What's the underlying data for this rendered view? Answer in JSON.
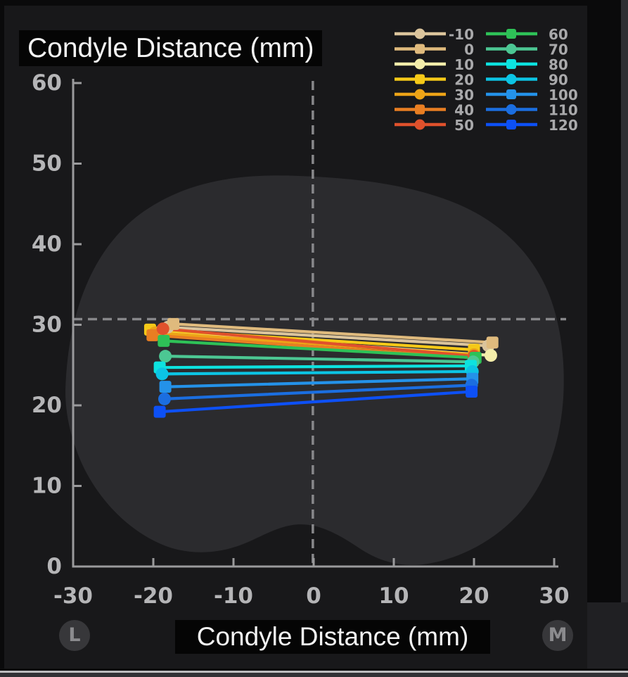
{
  "title": "Condyle Distance (mm)",
  "axis_title_x": "Condyle Distance (mm)",
  "corner_labels": {
    "left": "L",
    "right": "M"
  },
  "colors": {
    "panel_background": "#18181a",
    "plateau_blob": "#2b2b2e",
    "axis": "#9a9a9c",
    "tick_text": "#b5b5b7",
    "dashed_crosshair": "#87878a",
    "legend_text": "#a9a9ab",
    "title_text": "#f4f4f4",
    "title_background": "#050505",
    "badge_background": "#37373a",
    "badge_text": "#8b8b8e"
  },
  "chart_data": {
    "type": "line",
    "title": "Condyle Distance (mm)",
    "xlabel": "Condyle Distance (mm)",
    "ylabel": "Condyle Distance (mm)",
    "xlim": [
      -30,
      30
    ],
    "ylim": [
      0,
      60
    ],
    "xticks": [
      -30,
      -20,
      -10,
      0,
      10,
      20,
      30
    ],
    "yticks": [
      0,
      10,
      20,
      30,
      40,
      50,
      60
    ],
    "grid": false,
    "crosshair": {
      "x": -0.1,
      "y": 30.7
    },
    "legend_position": "top-right",
    "legend_columns": 2,
    "series": [
      {
        "name": "-10",
        "color": "#dbc49c",
        "marker": "circle",
        "points": [
          [
            -18.2,
            29.7
          ],
          [
            21.8,
            27.4
          ]
        ]
      },
      {
        "name": "0",
        "color": "#dfba7d",
        "marker": "square",
        "points": [
          [
            -17.5,
            30.1
          ],
          [
            22.3,
            27.8
          ]
        ]
      },
      {
        "name": "10",
        "color": "#f3edaa",
        "marker": "circle",
        "points": [
          [
            -19.2,
            29.1
          ],
          [
            22.1,
            26.2
          ]
        ]
      },
      {
        "name": "20",
        "color": "#f5c918",
        "marker": "square",
        "points": [
          [
            -20.4,
            29.4
          ],
          [
            20.0,
            26.9
          ]
        ]
      },
      {
        "name": "30",
        "color": "#eda417",
        "marker": "circle",
        "points": [
          [
            -19.8,
            29.0
          ],
          [
            20.0,
            26.3
          ]
        ]
      },
      {
        "name": "40",
        "color": "#e87e22",
        "marker": "square",
        "points": [
          [
            -20.1,
            28.7
          ],
          [
            20.0,
            25.9
          ]
        ]
      },
      {
        "name": "50",
        "color": "#e0512c",
        "marker": "circle",
        "points": [
          [
            -18.8,
            29.5
          ],
          [
            20.0,
            26.1
          ]
        ]
      },
      {
        "name": "60",
        "color": "#2ec157",
        "marker": "square",
        "points": [
          [
            -18.7,
            28.0
          ],
          [
            20.2,
            25.9
          ]
        ]
      },
      {
        "name": "70",
        "color": "#4cc793",
        "marker": "circle",
        "points": [
          [
            -18.5,
            26.1
          ],
          [
            19.9,
            25.4
          ]
        ]
      },
      {
        "name": "80",
        "color": "#0de2df",
        "marker": "square",
        "points": [
          [
            -19.2,
            24.7
          ],
          [
            19.6,
            24.9
          ]
        ]
      },
      {
        "name": "90",
        "color": "#0cc4e4",
        "marker": "circle",
        "points": [
          [
            -18.9,
            23.9
          ],
          [
            19.8,
            24.2
          ]
        ]
      },
      {
        "name": "100",
        "color": "#2492e9",
        "marker": "square",
        "points": [
          [
            -18.5,
            22.3
          ],
          [
            19.8,
            23.3
          ]
        ]
      },
      {
        "name": "110",
        "color": "#1b6ee0",
        "marker": "circle",
        "points": [
          [
            -18.6,
            20.8
          ],
          [
            19.7,
            22.5
          ]
        ]
      },
      {
        "name": "120",
        "color": "#0d50f5",
        "marker": "square",
        "points": [
          [
            -19.2,
            19.2
          ],
          [
            19.7,
            21.7
          ]
        ]
      }
    ]
  }
}
